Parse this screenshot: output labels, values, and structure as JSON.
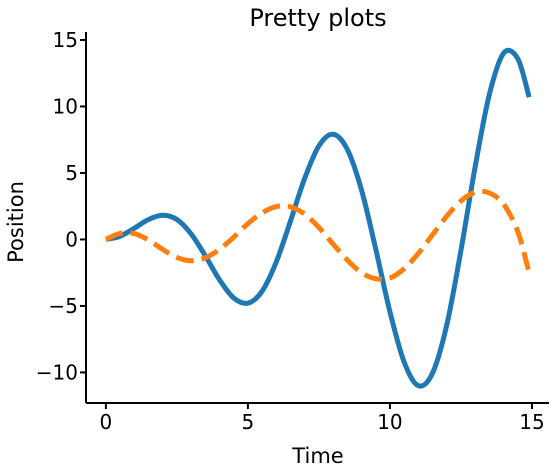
{
  "chart_data": {
    "type": "line",
    "title": "Pretty plots",
    "xlabel": "Time",
    "ylabel": "Position",
    "xlim": [
      -0.7,
      15.6
    ],
    "ylim": [
      -12.3,
      15.6
    ],
    "x_ticks": [
      0,
      5,
      10,
      15
    ],
    "x_tick_labels": [
      "0",
      "5",
      "10",
      "15"
    ],
    "y_ticks": [
      -10,
      -5,
      0,
      5,
      10,
      15
    ],
    "y_tick_labels": [
      "−10",
      "−5",
      "0",
      "5",
      "10",
      "15"
    ],
    "grid": false,
    "legend": "none",
    "series": [
      {
        "color": "#1f77b4",
        "line_style": "solid",
        "x": [
          0,
          0.5,
          1,
          1.5,
          2,
          2.5,
          3,
          3.5,
          4,
          4.5,
          5,
          5.5,
          6,
          6.5,
          7,
          7.5,
          8,
          8.5,
          9,
          9.5,
          10,
          10.5,
          11,
          11.5,
          12,
          12.5,
          13,
          13.5,
          14,
          14.5,
          14.9
        ],
        "y": [
          0,
          0.24,
          0.84,
          1.5,
          1.82,
          1.5,
          0.42,
          -1.23,
          -3.03,
          -4.4,
          -4.79,
          -3.89,
          -1.68,
          1.39,
          4.6,
          7.04,
          7.91,
          6.77,
          3.71,
          -0.72,
          -5.44,
          -9.22,
          -11.0,
          -10.05,
          -6.44,
          -0.83,
          5.46,
          10.9,
          14.0,
          13.6,
          10.7
        ]
      },
      {
        "color": "#ff7f0e",
        "line_style": "dashed",
        "x": [
          0,
          0.5,
          1,
          1.5,
          2,
          2.5,
          3,
          3.5,
          4,
          4.5,
          5,
          5.5,
          6,
          6.5,
          7,
          7.5,
          8,
          8.5,
          9,
          9.5,
          10,
          10.5,
          11,
          11.5,
          12,
          12.5,
          13,
          13.5,
          14,
          14.5,
          14.9
        ],
        "y": [
          0,
          0.45,
          0.44,
          -0.04,
          -0.75,
          -1.35,
          -1.6,
          -1.38,
          -0.74,
          0.17,
          1.19,
          2.0,
          2.47,
          2.45,
          1.9,
          0.9,
          -0.35,
          -1.55,
          -2.5,
          -2.95,
          -2.9,
          -2.2,
          -1.05,
          0.35,
          1.75,
          2.9,
          3.55,
          3.5,
          2.65,
          0.6,
          -2.5
        ]
      }
    ]
  }
}
